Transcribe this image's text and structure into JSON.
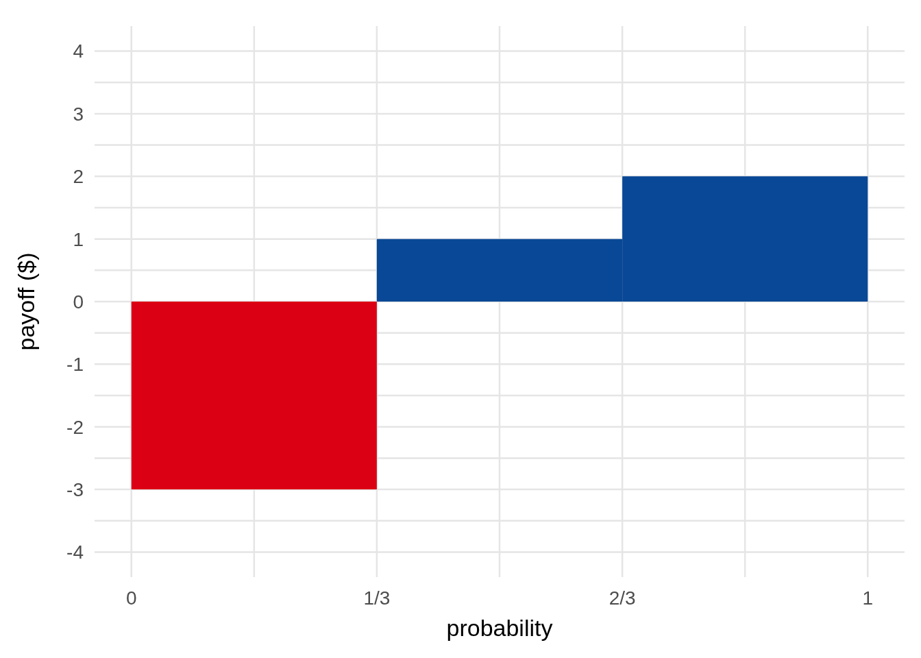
{
  "chart_data": {
    "type": "histogram",
    "xlabel": "probability",
    "ylabel": "payoff ($)",
    "bins": [
      0,
      0.3333,
      0.6667,
      1
    ],
    "values": [
      -3,
      1,
      2
    ],
    "colors": [
      "#dc0014",
      "#094896",
      "#094896"
    ],
    "xlim": [
      -0.05,
      1.05
    ],
    "xticks": [
      0,
      {
        "value": 0.1667,
        "label": null
      },
      {
        "value": 0.3333,
        "label": "1/3"
      },
      {
        "value": 0.5,
        "label": null
      },
      {
        "value": 0.6667,
        "label": "2/3"
      },
      {
        "value": 0.8333,
        "label": null
      },
      1
    ],
    "ylim": [
      -4.4,
      4.4
    ],
    "yticks": [
      -4,
      {
        "value": -3.5,
        "label": null
      },
      -3,
      {
        "value": -2.5,
        "label": null
      },
      -2,
      {
        "value": -1.5,
        "label": null
      },
      -1,
      {
        "value": -0.5,
        "label": null
      },
      0,
      {
        "value": 0.5,
        "label": null
      },
      1,
      {
        "value": 1.5,
        "label": null
      },
      2,
      {
        "value": 2.5,
        "label": null
      },
      3,
      {
        "value": 3.5,
        "label": null
      },
      4
    ],
    "grid": true
  }
}
